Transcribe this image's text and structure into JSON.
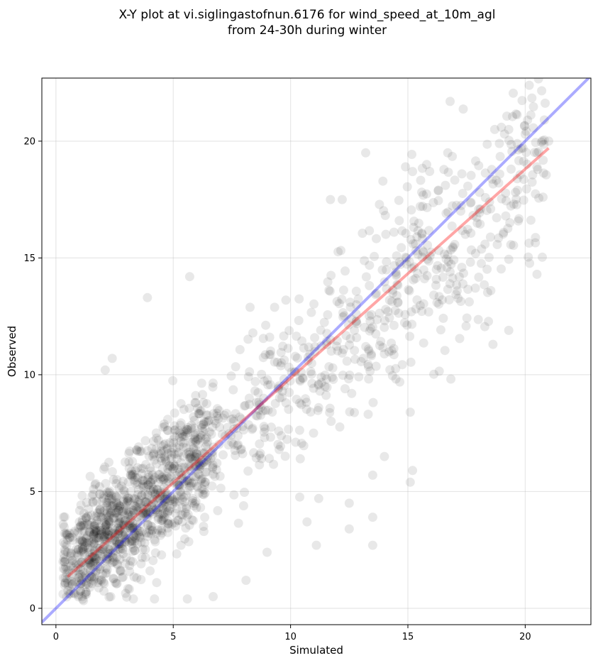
{
  "chart_data": {
    "type": "scatter",
    "title_lines": [
      "X-Y plot at vi.siglingastofnun.6176 for wind_speed_at_10m_agl",
      "from 24-30h during winter"
    ],
    "xlabel": "Simulated",
    "ylabel": "Observed",
    "xlim": [
      -0.6,
      22.8
    ],
    "ylim": [
      -0.7,
      22.7
    ],
    "xticks": [
      0,
      5,
      10,
      15,
      20
    ],
    "yticks": [
      0,
      5,
      10,
      15,
      20
    ],
    "grid": true,
    "point_color": "#000000",
    "point_alpha": 0.09,
    "identity_line": {
      "color": "#0000ff",
      "from": [
        -0.6,
        -0.6
      ],
      "to": [
        22.8,
        22.8
      ]
    },
    "fit_line": {
      "color": "#ff0000",
      "from": [
        0.5,
        1.35
      ],
      "to": [
        21.0,
        19.7
      ]
    },
    "highlighted_points": [
      [
        16.8,
        21.7
      ],
      [
        20.1,
        20.9
      ],
      [
        18.7,
        20.5
      ],
      [
        19.3,
        20.5
      ],
      [
        20.0,
        20.3
      ],
      [
        21.0,
        20.0
      ],
      [
        18.9,
        19.9
      ],
      [
        19.9,
        19.7
      ],
      [
        13.2,
        19.5
      ],
      [
        16.7,
        19.5
      ],
      [
        20.5,
        19.5
      ],
      [
        15.8,
        19.0
      ],
      [
        14.9,
        18.9
      ],
      [
        20.5,
        18.9
      ],
      [
        19.4,
        18.8
      ],
      [
        15.2,
        18.7
      ],
      [
        17.3,
        18.6
      ],
      [
        16.3,
        17.9
      ],
      [
        11.7,
        17.5
      ],
      [
        12.2,
        17.5
      ],
      [
        3.9,
        13.3
      ],
      [
        5.7,
        14.2
      ],
      [
        2.1,
        10.2
      ],
      [
        2.4,
        10.7
      ],
      [
        19.3,
        11.9
      ],
      [
        15.1,
        8.4
      ],
      [
        14.0,
        6.5
      ],
      [
        13.5,
        5.7
      ],
      [
        15.2,
        5.9
      ],
      [
        15.1,
        5.4
      ],
      [
        11.2,
        4.7
      ],
      [
        10.7,
        3.7
      ],
      [
        12.5,
        4.5
      ],
      [
        12.5,
        3.4
      ],
      [
        13.5,
        3.9
      ],
      [
        13.5,
        2.7
      ],
      [
        11.1,
        2.7
      ],
      [
        8.1,
        1.2
      ],
      [
        5.6,
        0.4
      ],
      [
        6.7,
        0.5
      ],
      [
        3.3,
        0.4
      ],
      [
        4.2,
        0.4
      ],
      [
        1.3,
        0.6
      ],
      [
        0.5,
        1.1
      ],
      [
        0.3,
        2.0
      ],
      [
        0.8,
        3.3
      ],
      [
        1.0,
        3.7
      ],
      [
        1.6,
        5.1
      ],
      [
        0.7,
        1.5
      ],
      [
        9.0,
        2.4
      ]
    ],
    "random_cloud": {
      "count": 1650,
      "seed": 6176,
      "x_range": [
        0.3,
        20.9
      ],
      "slope": 0.84,
      "intercept": 1.3,
      "noise_sd_base": 1.1,
      "noise_sd_per_unit": 0.07,
      "low_x_weight": 0.35
    }
  }
}
